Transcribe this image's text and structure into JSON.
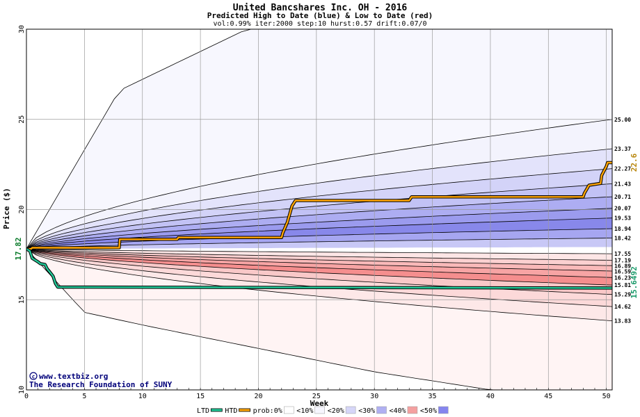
{
  "chart_data": {
    "type": "area",
    "title": "United Bancshares Inc. OH - 2016",
    "subtitle": "Predicted High to Date (blue) &  Low to Date (red)",
    "params": "vol:0.99% iter:2000 step:10 hurst:0.57 drift:0.07/0",
    "xlabel": "Week",
    "ylabel": "Price ($)",
    "xlim": [
      0,
      50.5
    ],
    "ylim": [
      10,
      30
    ],
    "x_ticks": [
      0,
      5,
      10,
      15,
      20,
      25,
      30,
      35,
      40,
      45,
      50
    ],
    "y_ticks": [
      10,
      15,
      20,
      25,
      30
    ],
    "grid": true,
    "start_price": 17.82,
    "start_price_label": "17.82",
    "upper_bands_end": [
      {
        "label": "25.00",
        "value": 25.0
      },
      {
        "label": "23.37",
        "value": 23.37
      },
      {
        "label": "22.27",
        "value": 22.27
      },
      {
        "label": "21.43",
        "value": 21.43
      },
      {
        "label": "20.71",
        "value": 20.71
      },
      {
        "label": "20.07",
        "value": 20.07
      },
      {
        "label": "19.53",
        "value": 19.53
      },
      {
        "label": "18.94",
        "value": 18.94
      },
      {
        "label": "18.42",
        "value": 18.42
      }
    ],
    "lower_bands_end": [
      {
        "label": "17.55",
        "value": 17.55
      },
      {
        "label": "17.19",
        "value": 17.19
      },
      {
        "label": "16.89",
        "value": 16.89
      },
      {
        "label": "16.59",
        "value": 16.59
      },
      {
        "label": "16.23",
        "value": 16.23
      },
      {
        "label": "15.81",
        "value": 15.81
      },
      {
        "label": "15.29",
        "value": 15.29
      },
      {
        "label": "14.62",
        "value": 14.62
      },
      {
        "label": "13.83",
        "value": 13.83
      }
    ],
    "envelope": {
      "max": [
        [
          0,
          17.82
        ],
        [
          8,
          26.6
        ],
        [
          19,
          30.0
        ]
      ],
      "min": [
        [
          0,
          17.82
        ],
        [
          5,
          14.3
        ],
        [
          10,
          13.6
        ],
        [
          20,
          12.3
        ],
        [
          30,
          11.0
        ],
        [
          40,
          10.0
        ],
        [
          50.5,
          9.8
        ]
      ]
    },
    "series": [
      {
        "name": "HTD",
        "color": "#ffa500",
        "points": [
          [
            0,
            17.82
          ],
          [
            0.4,
            17.82
          ],
          [
            0.5,
            17.88
          ],
          [
            8,
            17.88
          ],
          [
            8.05,
            18.35
          ],
          [
            13,
            18.35
          ],
          [
            13.1,
            18.45
          ],
          [
            22,
            18.45
          ],
          [
            22.1,
            18.7
          ],
          [
            22.5,
            19.3
          ],
          [
            22.9,
            20.2
          ],
          [
            23.2,
            20.5
          ],
          [
            33,
            20.5
          ],
          [
            33.2,
            20.7
          ],
          [
            48,
            20.7
          ],
          [
            48.1,
            20.9
          ],
          [
            48.5,
            21.35
          ],
          [
            49.5,
            21.45
          ],
          [
            49.6,
            21.9
          ],
          [
            50,
            22.4
          ],
          [
            50.1,
            22.6
          ],
          [
            50.5,
            22.6
          ]
        ]
      },
      {
        "name": "LTD",
        "color": "#22c998",
        "points": [
          [
            0,
            17.82
          ],
          [
            0.3,
            17.7
          ],
          [
            0.5,
            17.3
          ],
          [
            1,
            17.1
          ],
          [
            1.2,
            17.0
          ],
          [
            1.6,
            16.95
          ],
          [
            1.8,
            16.7
          ],
          [
            2,
            16.55
          ],
          [
            2.3,
            16.3
          ],
          [
            2.5,
            15.9
          ],
          [
            2.7,
            15.7
          ],
          [
            50.5,
            15.6492
          ]
        ]
      }
    ],
    "end_labels": {
      "htd": "22.6",
      "ltd": "15.6492"
    },
    "legend": {
      "placement": "bottom",
      "items": [
        {
          "label": "LTD",
          "kind": "line",
          "color": "#22c998"
        },
        {
          "label": "HTD",
          "kind": "line",
          "color": "#ffa500"
        },
        {
          "label": "prob:0%",
          "kind": "swatch",
          "color": "#ffffff"
        },
        {
          "label": "<10%",
          "kind": "swatch",
          "color": "#f6f6fe"
        },
        {
          "label": "<20%",
          "kind": "swatch",
          "color": "#d6d6f8"
        },
        {
          "label": "<30%",
          "kind": "swatch",
          "color": "#b0b0f2"
        },
        {
          "label": "<40%",
          "kind": "swatch",
          "color": "#f4a0a0"
        },
        {
          "label": "<50%",
          "kind": "swatch",
          "color": "#8585ee"
        }
      ]
    },
    "watermark": {
      "line1": "www.textbiz.org",
      "line2": "The Research Foundation of SUNY",
      "copyright": "©"
    }
  }
}
